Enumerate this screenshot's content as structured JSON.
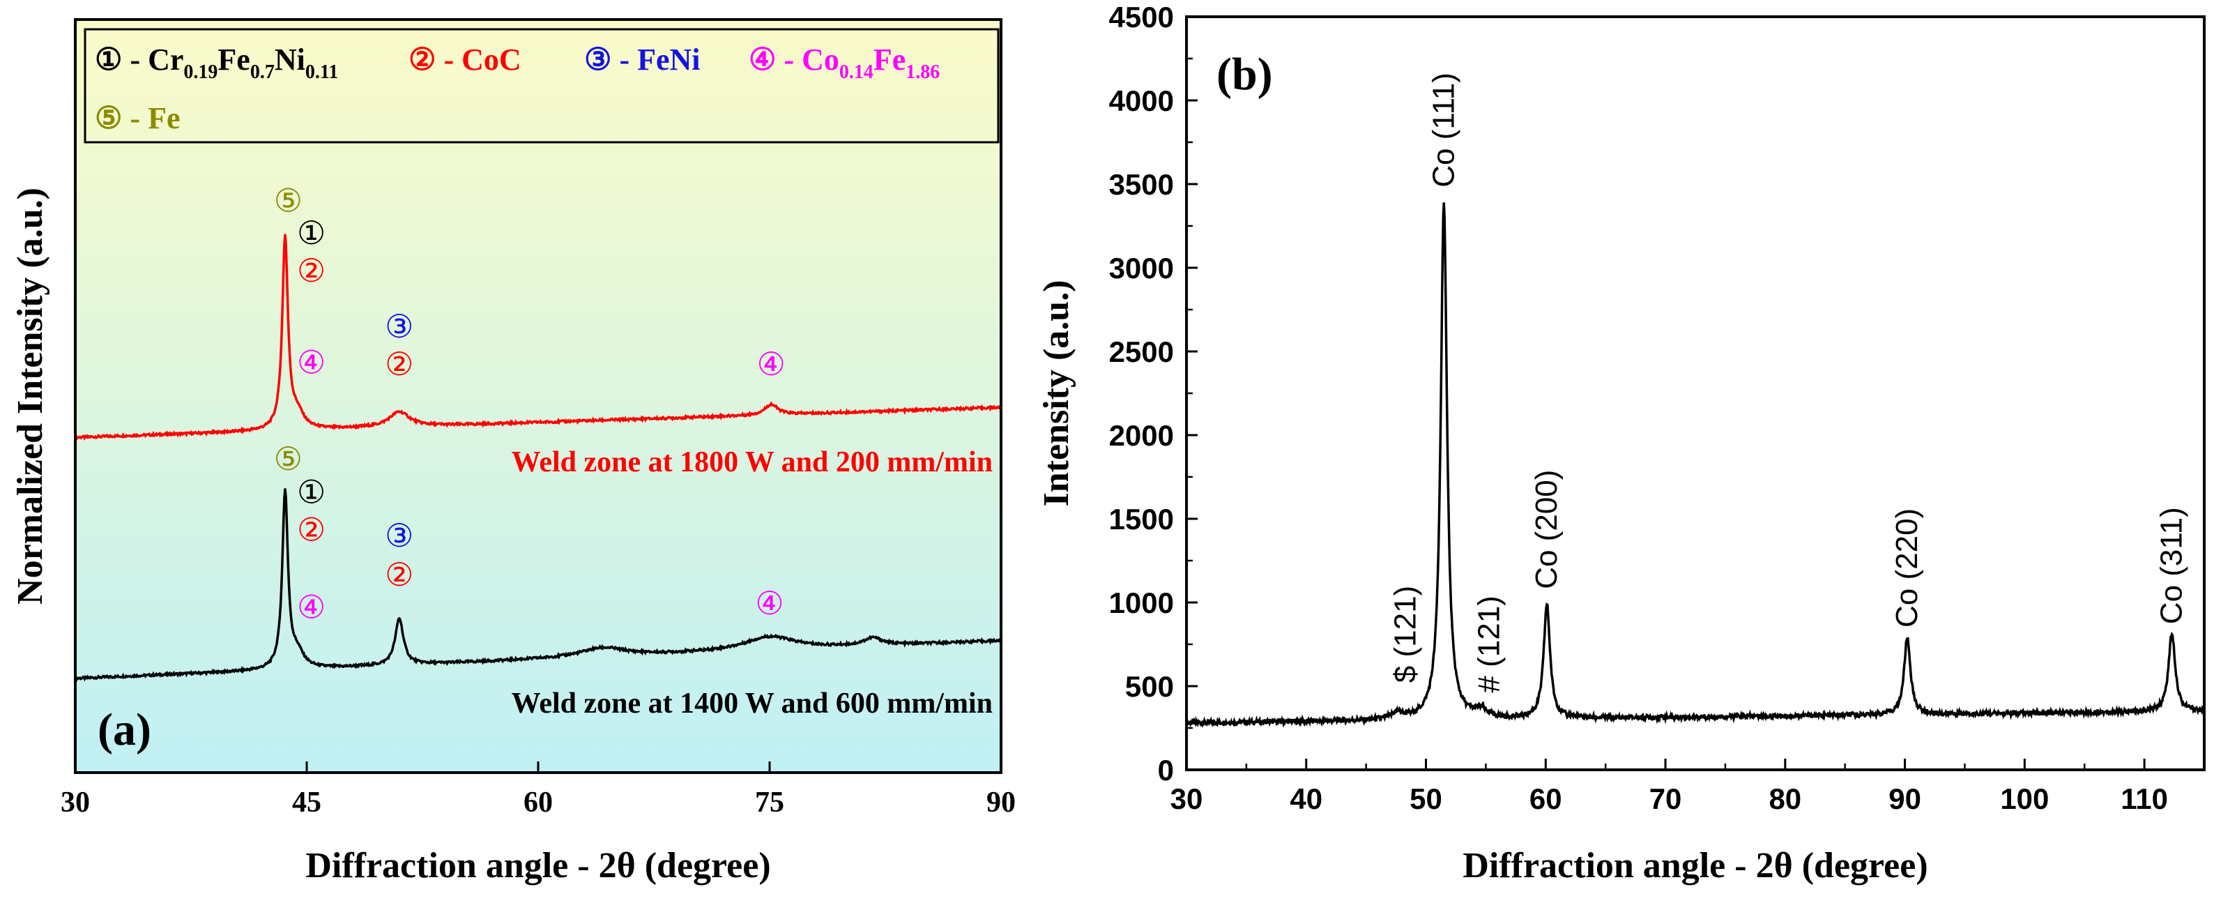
{
  "chart_data": [
    {
      "id": "a",
      "type": "line",
      "panel_label": "(a)",
      "xlabel": "Diffraction angle - 2θ (degree)",
      "ylabel": "Normalized Intensity (a.u.)",
      "xlim": [
        30,
        90
      ],
      "ylim": [
        0,
        1
      ],
      "xticks": [
        "30",
        "45",
        "60",
        "75",
        "90"
      ],
      "background_colors": [
        "#fbfbc9",
        "#c0f0f4"
      ],
      "legend": {
        "position": "top",
        "entries": [
          {
            "num": "①",
            "dash": " - ",
            "text": "Cr",
            "sub1": "0.19",
            "text2": "Fe",
            "sub2": "0.7",
            "text3": "Ni",
            "sub3": "0.11",
            "color": "#000000"
          },
          {
            "num": "②",
            "dash": " - ",
            "text": "CoC",
            "color": "#ff0000"
          },
          {
            "num": "③",
            "dash": " - ",
            "text": "FeNi",
            "color": "#1414e0"
          },
          {
            "num": "④",
            "dash": " - ",
            "text": "Co",
            "sub1": "0.14",
            "text2": "Fe",
            "sub2": "1.86",
            "color": "#ff00ff"
          },
          {
            "num": "⑤",
            "dash": " - ",
            "text": "Fe",
            "color": "#8b8b00"
          }
        ]
      },
      "series": [
        {
          "name": "Weld zone at 1800 W and 200 mm/min",
          "color": "#ff0000",
          "baseline": [
            [
              30,
              0.445
            ],
            [
              90,
              0.485
            ]
          ],
          "peaks": [
            [
              43.6,
              0.255,
              0.22
            ],
            [
              44.4,
              0.02,
              0.5
            ],
            [
              51.0,
              0.02,
              0.8
            ],
            [
              75.1,
              0.014,
              0.5
            ]
          ],
          "peak_labels": [
            {
              "x": 43.8,
              "y": 0.745,
              "symbol": "⑤",
              "color": "#8b8b00"
            },
            {
              "x": 45.3,
              "y": 0.702,
              "symbol": "①",
              "color": "#000000"
            },
            {
              "x": 45.3,
              "y": 0.652,
              "symbol": "②",
              "color": "#ff0000"
            },
            {
              "x": 45.3,
              "y": 0.53,
              "symbol": "④",
              "color": "#ff00ff"
            },
            {
              "x": 51.0,
              "y": 0.578,
              "symbol": "③",
              "color": "#1414e0"
            },
            {
              "x": 51.0,
              "y": 0.528,
              "symbol": "②",
              "color": "#ff0000"
            },
            {
              "x": 75.1,
              "y": 0.528,
              "symbol": "④",
              "color": "#ff00ff"
            }
          ]
        },
        {
          "name": "Weld zone at 1400 W and 600 mm/min",
          "color": "#000000",
          "baseline": [
            [
              30,
              0.125
            ],
            [
              90,
              0.175
            ]
          ],
          "peaks": [
            [
              43.6,
              0.235,
              0.22
            ],
            [
              44.4,
              0.02,
              0.5
            ],
            [
              51.0,
              0.062,
              0.32
            ],
            [
              64.2,
              0.012,
              1.8
            ],
            [
              75.0,
              0.018,
              2.0
            ],
            [
              81.7,
              0.01,
              0.7
            ]
          ],
          "peak_labels": [
            {
              "x": 43.8,
              "y": 0.402,
              "symbol": "⑤",
              "color": "#8b8b00"
            },
            {
              "x": 45.3,
              "y": 0.358,
              "symbol": "①",
              "color": "#000000"
            },
            {
              "x": 45.3,
              "y": 0.308,
              "symbol": "②",
              "color": "#ff0000"
            },
            {
              "x": 45.3,
              "y": 0.205,
              "symbol": "④",
              "color": "#ff00ff"
            },
            {
              "x": 51.0,
              "y": 0.3,
              "symbol": "③",
              "color": "#1414e0"
            },
            {
              "x": 51.0,
              "y": 0.248,
              "symbol": "②",
              "color": "#ff0000"
            },
            {
              "x": 75.0,
              "y": 0.21,
              "symbol": "④",
              "color": "#ff00ff"
            }
          ]
        }
      ]
    },
    {
      "id": "b",
      "type": "line",
      "panel_label": "(b)",
      "xlabel": "Diffraction angle - 2θ (degree)",
      "ylabel": "Intensity (a.u.)",
      "xlim": [
        30,
        115
      ],
      "ylim": [
        0,
        4500
      ],
      "xticks": [
        "30",
        "40",
        "50",
        "60",
        "70",
        "80",
        "90",
        "100",
        "110"
      ],
      "yticks": [
        "0",
        "500",
        "1000",
        "1500",
        "2000",
        "2500",
        "3000",
        "3500",
        "4000",
        "4500"
      ],
      "series": [
        {
          "name": "XRD pattern",
          "color": "#000000",
          "baseline": [
            [
              30,
              280
            ],
            [
              115,
              350
            ]
          ],
          "peaks": [
            [
              47.6,
              40,
              0.5
            ],
            [
              51.5,
              3080,
              0.32
            ],
            [
              54.6,
              45,
              0.6
            ],
            [
              60.1,
              680,
              0.32
            ],
            [
              90.2,
              460,
              0.32
            ],
            [
              112.3,
              470,
              0.34
            ]
          ]
        }
      ],
      "peak_labels": [
        {
          "x": 48.3,
          "y": 520,
          "text": "$ (121)"
        },
        {
          "x": 51.5,
          "y": 3480,
          "text": "Co (111)"
        },
        {
          "x": 55.3,
          "y": 460,
          "text": "# (121)"
        },
        {
          "x": 60.1,
          "y": 1080,
          "text": "Co (200)"
        },
        {
          "x": 90.2,
          "y": 850,
          "text": "Co (220)"
        },
        {
          "x": 112.3,
          "y": 870,
          "text": "Co (311)"
        }
      ]
    }
  ]
}
